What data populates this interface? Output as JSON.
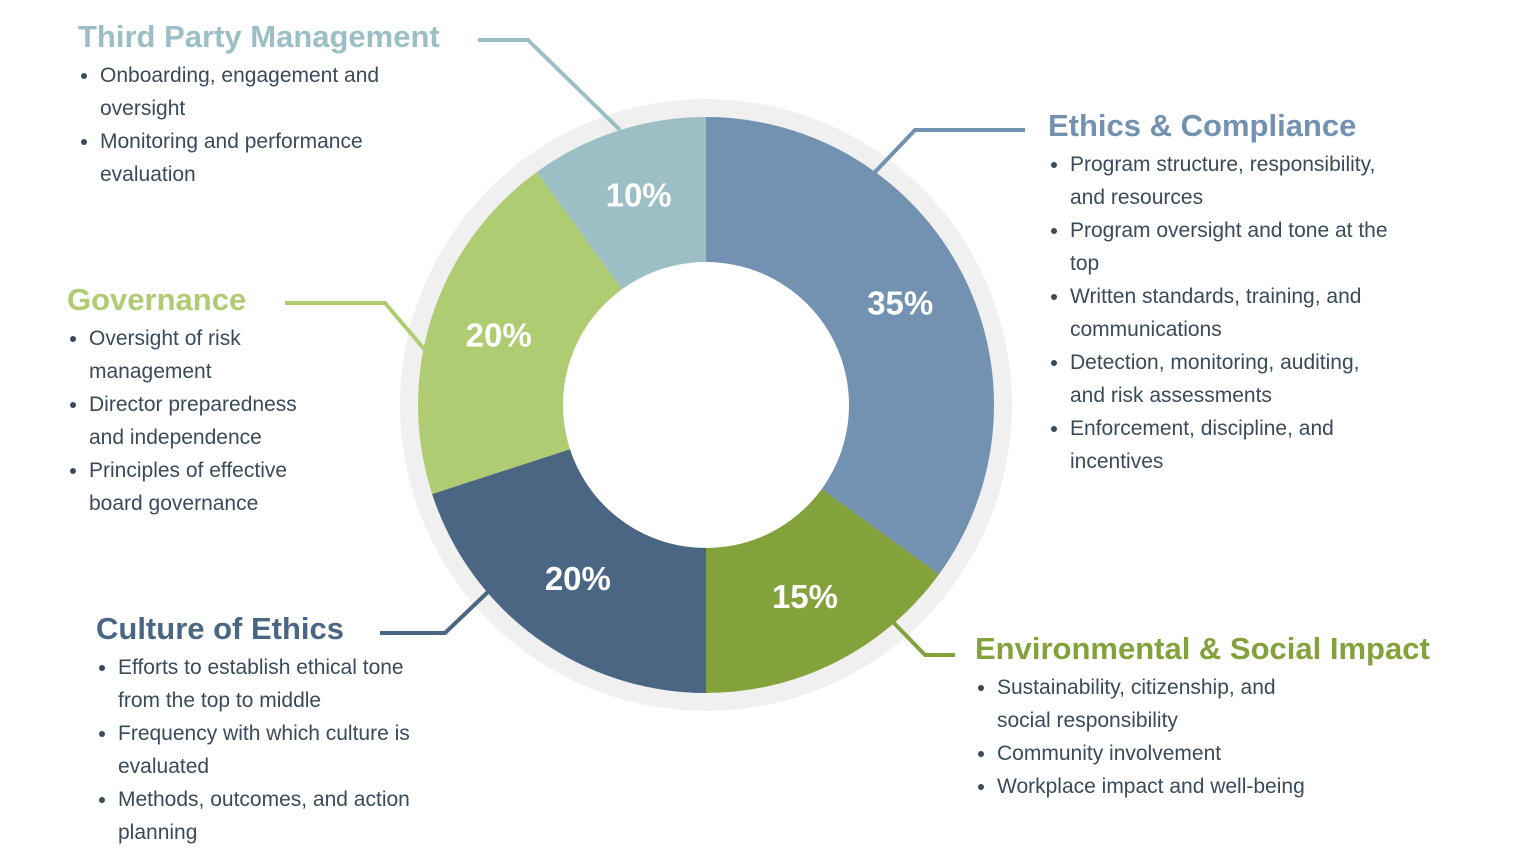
{
  "chart_data": {
    "type": "donut",
    "categories": [
      "Ethics & Compliance",
      "Environmental & Social Impact",
      "Culture of Ethics",
      "Governance",
      "Third Party Management"
    ],
    "values": [
      35,
      15,
      20,
      20,
      10
    ],
    "value_labels": [
      "35%",
      "15%",
      "20%",
      "20%",
      "10%"
    ],
    "colors": [
      "#7391b0",
      "#84a23b",
      "#4a6682",
      "#b0cc72",
      "#9bbfc4"
    ],
    "details": [
      [
        "Program structure, responsibility, and resources",
        "Program oversight and tone at the top",
        "Written standards, training, and communications",
        "Detection, monitoring, auditing, and risk assessments",
        "Enforcement, discipline, and incentives"
      ],
      [
        "Sustainability, citizenship, and social responsibility",
        "Community involvement",
        "Workplace impact and well-being"
      ],
      [
        "Efforts to establish ethical tone from the top to middle",
        "Frequency with which culture is evaluated",
        "Methods, outcomes, and action planning"
      ],
      [
        "Oversight of risk management",
        "Director preparedness and independence",
        "Principles of effective board governance"
      ],
      [
        "Onboarding, engagement and oversight",
        "Monitoring and performance evaluation"
      ]
    ]
  }
}
